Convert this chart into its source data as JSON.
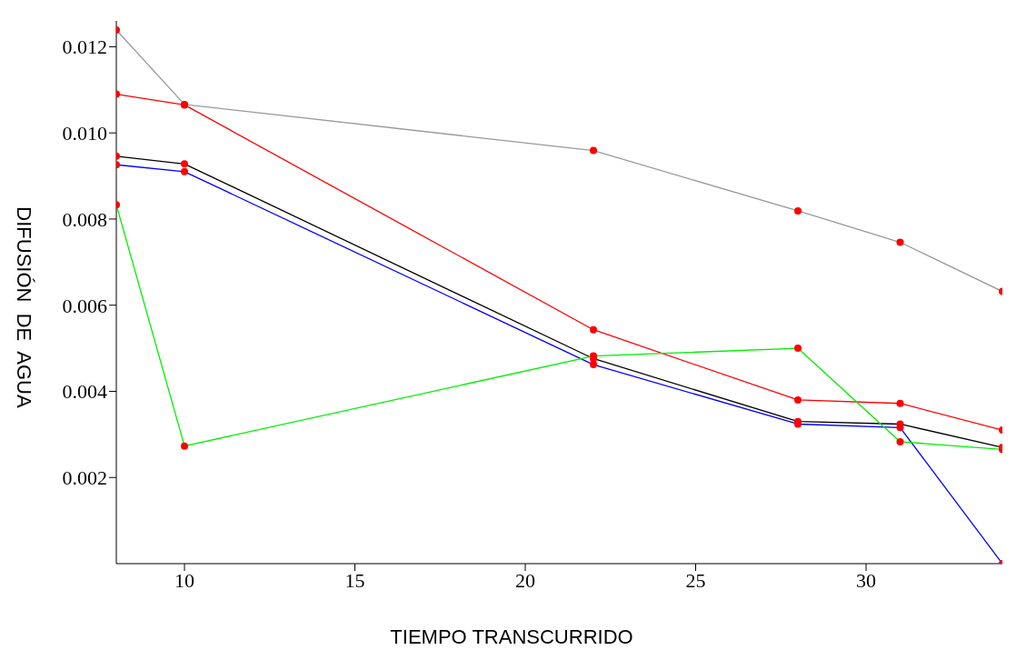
{
  "chart_data": {
    "type": "line",
    "xlabel": "TIEMPO TRANSCURRIDO",
    "ylabel": "DIFUSIÓN  DE  AGUA",
    "x": [
      8,
      10,
      22,
      28,
      31,
      34
    ],
    "series": [
      {
        "color": "#999999",
        "values": [
          0.01239,
          0.01066,
          0.00959,
          0.00819,
          0.00746,
          0.00632
        ]
      },
      {
        "color": "#ff0000",
        "values": [
          0.0109,
          0.01065,
          0.00543,
          0.0038,
          0.00372,
          0.0031
        ]
      },
      {
        "color": "#000000",
        "values": [
          0.00946,
          0.00928,
          0.00476,
          0.0033,
          0.00324,
          0.0027
        ]
      },
      {
        "color": "#0000ff",
        "values": [
          0.00926,
          0.0091,
          0.00462,
          0.00324,
          0.00316,
          0
        ]
      },
      {
        "color": "#00ee00",
        "values": [
          0.00833,
          0.00273,
          0.00482,
          0.005,
          0.00283,
          0.00265
        ]
      }
    ],
    "xlim": [
      8,
      34
    ],
    "xticks": [
      10,
      15,
      20,
      25,
      30
    ],
    "ylim": [
      0,
      0.0126
    ],
    "yticks": [
      0.002,
      0.004,
      0.006,
      0.008,
      {
        "value": 0.01,
        "label": "0.010"
      },
      0.012
    ],
    "marker": "circle",
    "line_style": "solid"
  }
}
